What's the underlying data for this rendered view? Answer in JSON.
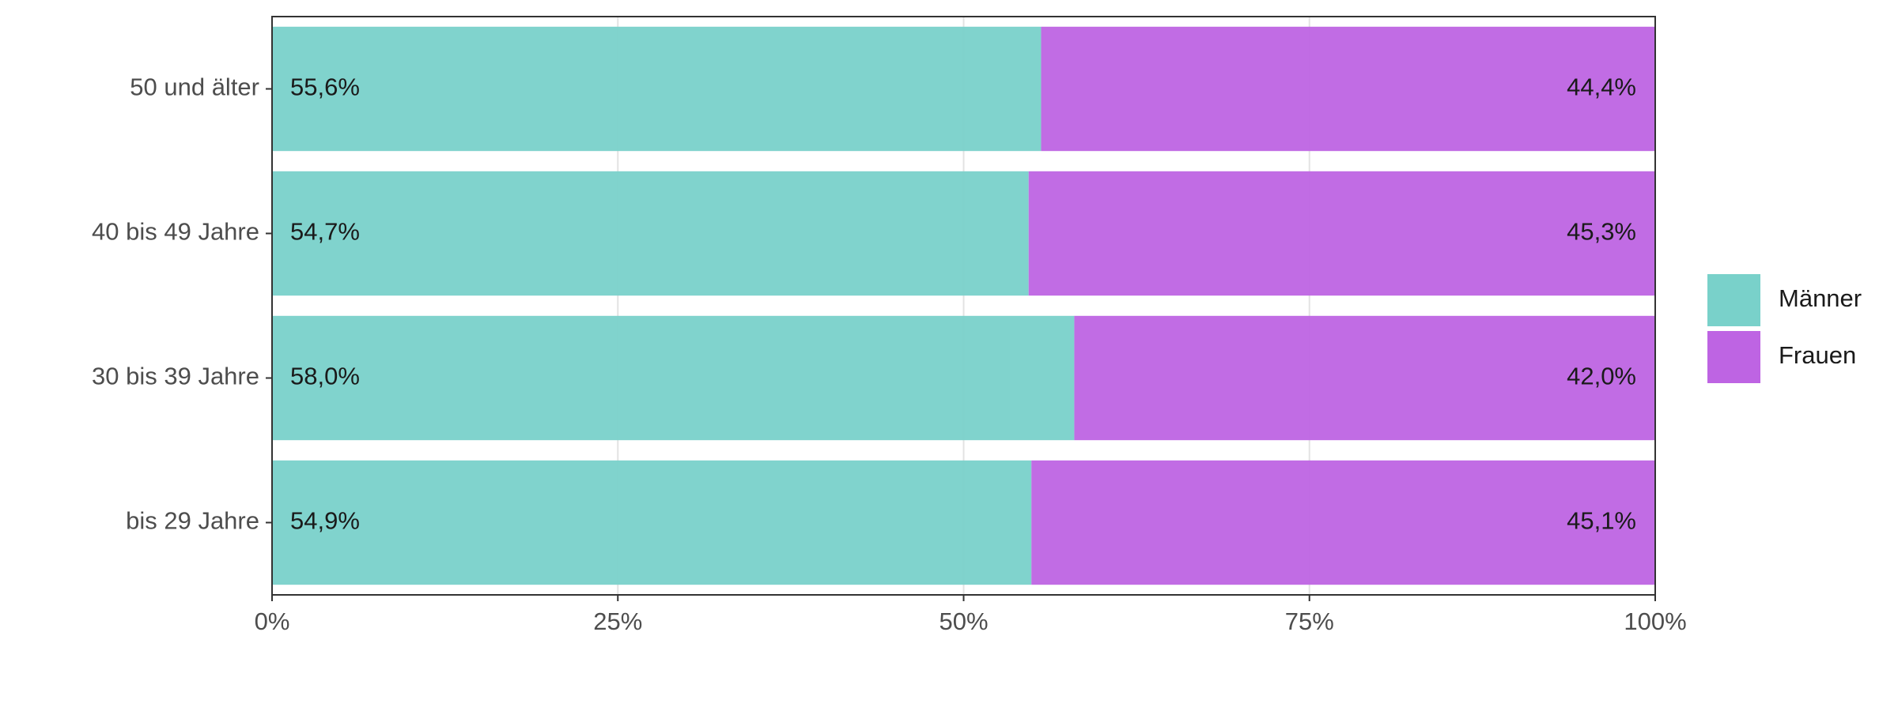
{
  "chart_data": {
    "type": "stacked_bar_horizontal",
    "categories": [
      "50 und älter",
      "40 bis 49 Jahre",
      "30 bis 39 Jahre",
      "bis 29 Jahre"
    ],
    "series": [
      {
        "name": "Männer",
        "color": "#79d1ca",
        "values": [
          55.6,
          54.7,
          58.0,
          54.9
        ],
        "value_labels": [
          "55,6%",
          "54,7%",
          "58,0%",
          "54,9%"
        ]
      },
      {
        "name": "Frauen",
        "color": "#be64e3",
        "values": [
          44.4,
          45.3,
          42.0,
          45.1
        ],
        "value_labels": [
          "44,4%",
          "45,3%",
          "42,0%",
          "45,1%"
        ]
      }
    ],
    "xlim": [
      0,
      100
    ],
    "xticks": [
      {
        "value": 0,
        "label": "0%"
      },
      {
        "value": 25,
        "label": "25%"
      },
      {
        "value": 50,
        "label": "50%"
      },
      {
        "value": 75,
        "label": "75%"
      },
      {
        "value": 100,
        "label": "100%"
      }
    ],
    "grid": true,
    "legend": "right"
  }
}
